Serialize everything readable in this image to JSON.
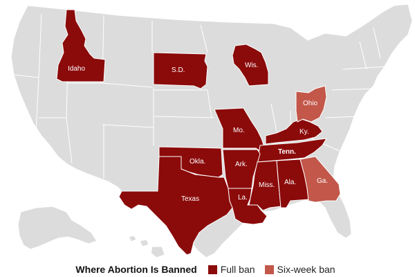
{
  "legend": {
    "title": "Where Abortion Is Banned",
    "items": [
      {
        "label": "Full ban",
        "color": "#8b0a0a"
      },
      {
        "label": "Six-week ban",
        "color": "#c2574a"
      }
    ]
  },
  "colors": {
    "background_states": "#dcdcdc",
    "state_borders": "#ffffff",
    "full_ban": "#8b0a0a",
    "six_week_ban": "#c2574a"
  },
  "states": [
    {
      "id": "idaho",
      "label": "Idaho",
      "status": "full_ban"
    },
    {
      "id": "south-dakota",
      "label": "S.D.",
      "status": "full_ban"
    },
    {
      "id": "wisconsin",
      "label": "Wis.",
      "status": "full_ban"
    },
    {
      "id": "missouri",
      "label": "Mo.",
      "status": "full_ban"
    },
    {
      "id": "kentucky",
      "label": "Ky.",
      "status": "full_ban"
    },
    {
      "id": "tennessee",
      "label": "Tenn.",
      "status": "full_ban"
    },
    {
      "id": "oklahoma",
      "label": "Okla.",
      "status": "full_ban"
    },
    {
      "id": "arkansas",
      "label": "Ark.",
      "status": "full_ban"
    },
    {
      "id": "texas",
      "label": "Texas",
      "status": "full_ban"
    },
    {
      "id": "louisiana",
      "label": "La.",
      "status": "full_ban"
    },
    {
      "id": "mississippi",
      "label": "Miss.",
      "status": "full_ban"
    },
    {
      "id": "alabama",
      "label": "Ala.",
      "status": "full_ban"
    },
    {
      "id": "ohio",
      "label": "Ohio",
      "status": "six_week_ban"
    },
    {
      "id": "georgia",
      "label": "Ga.",
      "status": "six_week_ban"
    }
  ]
}
